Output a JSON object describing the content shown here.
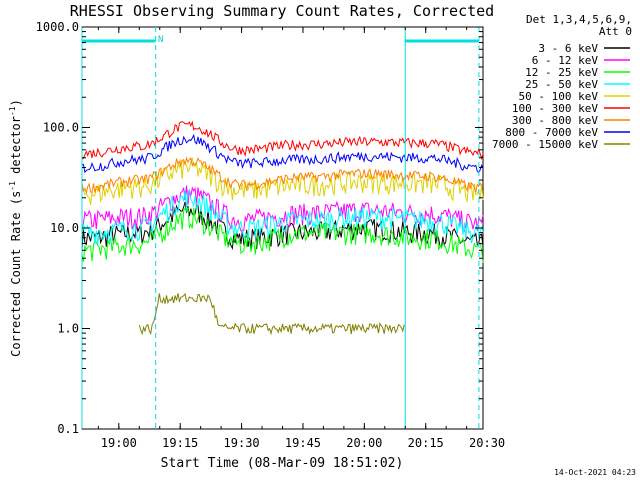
{
  "chart_data": {
    "type": "line",
    "title": "RHESSI Observing Summary Count Rates, Corrected",
    "xlabel": "Start Time (08-Mar-09 18:51:02)",
    "ylabel_main": "Corrected Count Rate (s",
    "ylabel_sup1": "-1",
    "ylabel_mid": " detector",
    "ylabel_sup2": "-1",
    "ylabel_end": ")",
    "y_scale": "log",
    "ylim": [
      0.1,
      1000
    ],
    "xlim": [
      "18:51",
      "20:29"
    ],
    "x_ticks": [
      "19:00",
      "19:15",
      "19:30",
      "19:45",
      "20:00",
      "20:15",
      "20:30"
    ],
    "y_ticks": [
      "0.1",
      "1.0",
      "10.0",
      "100.0",
      "1000.0"
    ],
    "legend_placement": "right",
    "legend_header": [
      "Det 1,3,4,5,6,9,",
      "Att 0"
    ],
    "annotation_night": "N",
    "timestamp": "14-Oct-2021 04:23",
    "shading_markers": [
      {
        "time": "19:09",
        "style": "dashed"
      },
      {
        "time": "20:10",
        "style": "solid"
      },
      {
        "time": "20:28",
        "style": "dashed"
      }
    ],
    "series": [
      {
        "name": "3 - 6 keV",
        "color": "#000000",
        "x": [
          "18:51",
          "19:05",
          "19:17",
          "19:30",
          "19:45",
          "20:00",
          "20:15",
          "20:29"
        ],
        "values": [
          8,
          9,
          15,
          8,
          9,
          10,
          9,
          7
        ]
      },
      {
        "name": "6 - 12 keV",
        "color": "#ff00ff",
        "x": [
          "18:51",
          "19:05",
          "19:17",
          "19:30",
          "19:45",
          "20:00",
          "20:15",
          "20:29"
        ],
        "values": [
          12,
          13,
          22,
          12,
          14,
          15,
          14,
          11
        ]
      },
      {
        "name": "12 - 25 keV",
        "color": "#00ff00",
        "x": [
          "18:51",
          "19:05",
          "19:17",
          "19:30",
          "19:45",
          "20:00",
          "20:15",
          "20:29"
        ],
        "values": [
          6,
          7,
          13,
          7,
          9,
          9,
          8,
          6
        ]
      },
      {
        "name": "25 - 50 keV",
        "color": "#00ffff",
        "x": [
          "18:51",
          "19:05",
          "19:17",
          "19:30",
          "19:45",
          "20:00",
          "20:15",
          "20:29"
        ],
        "values": [
          9,
          10,
          20,
          10,
          12,
          13,
          12,
          9
        ]
      },
      {
        "name": "50 - 100 keV",
        "color": "#e0d000",
        "x": [
          "18:51",
          "19:05",
          "19:17",
          "19:30",
          "19:45",
          "20:00",
          "20:15",
          "20:29"
        ],
        "values": [
          22,
          26,
          40,
          24,
          27,
          29,
          28,
          22
        ]
      },
      {
        "name": "100 - 300 keV",
        "color": "#ff0000",
        "x": [
          "18:51",
          "19:05",
          "19:17",
          "19:30",
          "19:45",
          "20:00",
          "20:15",
          "20:29"
        ],
        "values": [
          55,
          65,
          105,
          60,
          68,
          72,
          70,
          55
        ]
      },
      {
        "name": "300 - 800 keV",
        "color": "#ff8000",
        "x": [
          "18:51",
          "19:05",
          "19:17",
          "19:30",
          "19:45",
          "20:00",
          "20:15",
          "20:29"
        ],
        "values": [
          25,
          30,
          47,
          27,
          32,
          35,
          33,
          25
        ]
      },
      {
        "name": "800 - 7000 keV",
        "color": "#0000ff",
        "x": [
          "18:51",
          "19:05",
          "19:17",
          "19:30",
          "19:45",
          "20:00",
          "20:15",
          "20:29"
        ],
        "values": [
          40,
          48,
          78,
          44,
          48,
          52,
          50,
          40
        ]
      },
      {
        "name": "7000 - 15000 keV",
        "color": "#808000",
        "x": [
          "19:05",
          "19:08",
          "19:10",
          "19:14",
          "19:18",
          "19:22",
          "19:25",
          "19:30",
          "19:45",
          "20:00",
          "20:05",
          "20:10"
        ],
        "values": [
          1,
          1,
          2,
          2,
          2,
          2,
          1,
          1,
          1,
          1,
          1,
          1
        ]
      }
    ]
  }
}
